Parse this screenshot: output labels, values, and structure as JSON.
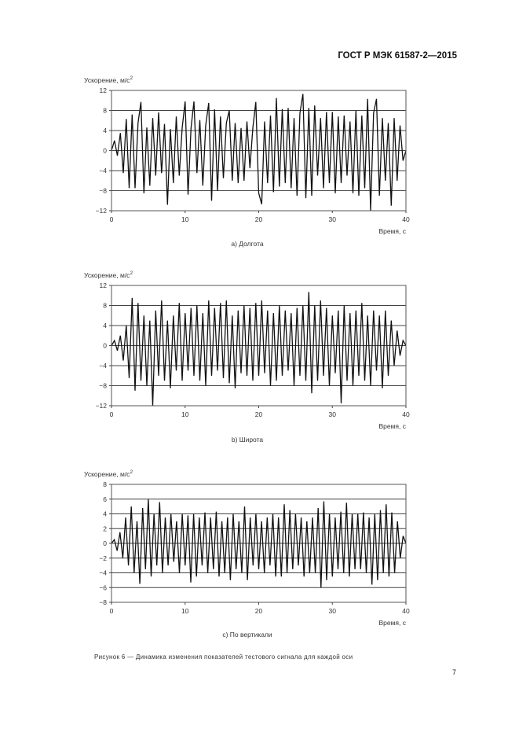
{
  "header": {
    "doc_id": "ГОСТ Р МЭК 61587-2—2015"
  },
  "figure_caption": "Рисунок  6 — Динамика изменения показателей тестового сигнала для каждой оси",
  "page_number": "7",
  "chart_data": [
    {
      "type": "line",
      "caption": "a) Долгота",
      "ylabel": "Ускорение, м/с",
      "ylabel_sup": "2",
      "xlabel": "Время, с",
      "xlim": [
        0,
        40
      ],
      "ylim": [
        -12,
        12
      ],
      "xticks": [
        0,
        10,
        20,
        30,
        40
      ],
      "yticks": [
        12,
        8,
        4,
        0,
        -4,
        -8,
        -12
      ],
      "grid": "horizontal",
      "line_color": "#111111",
      "values": [
        0,
        2,
        -1,
        3.5,
        -4.5,
        6.3,
        -7.5,
        7.2,
        -7.5,
        5.5,
        9.7,
        -8.5,
        4.6,
        -7,
        6.5,
        -5,
        7.6,
        -4.5,
        5.3,
        -10.8,
        4.3,
        -6.5,
        6.8,
        -5,
        4.5,
        9.8,
        -8.8,
        4.5,
        9.8,
        -4.5,
        6.1,
        -7,
        5,
        9.5,
        -10,
        8.2,
        -8,
        6.8,
        -5.5,
        5.5,
        8,
        -6,
        5.5,
        -6.5,
        4.5,
        -6,
        5.8,
        -3.5,
        4.5,
        9.7,
        -8.5,
        -10.7,
        5.8,
        -6.5,
        7,
        -8.3,
        10.5,
        -7.2,
        8.3,
        -6.5,
        8.5,
        -7.5,
        6.5,
        -9,
        7.5,
        11.3,
        -9.5,
        8.5,
        -9,
        9,
        -5,
        6.5,
        -7.5,
        7.7,
        -6.5,
        7.7,
        -8.5,
        6.8,
        -6.5,
        7,
        -5,
        5.8,
        -8.5,
        8,
        -9,
        7,
        -7.5,
        10.3,
        -12,
        7.5,
        10.3,
        -9,
        6.5,
        -6,
        5.5,
        -11,
        6.5,
        -6,
        5,
        -2,
        0
      ]
    },
    {
      "type": "line",
      "caption": "b) Широта",
      "ylabel": "Ускорение, м/с",
      "ylabel_sup": "2",
      "xlabel": "Время, с",
      "xlim": [
        0,
        40
      ],
      "ylim": [
        -12,
        12
      ],
      "xticks": [
        0,
        10,
        20,
        30,
        40
      ],
      "yticks": [
        12,
        8,
        4,
        0,
        -4,
        -8,
        -12
      ],
      "grid": "horizontal",
      "line_color": "#111111",
      "values": [
        0,
        1,
        -1,
        2,
        -3,
        4,
        -6.5,
        9.5,
        -9,
        8.5,
        -7,
        6,
        -8,
        5,
        -12,
        7,
        -6,
        9,
        -7,
        5,
        -8.5,
        6,
        -5,
        8.5,
        -7,
        6.5,
        -5,
        7.5,
        -6,
        8,
        -7,
        6.5,
        -8,
        9,
        -6,
        7.5,
        -5,
        8.5,
        -6.5,
        9,
        -7.5,
        6,
        -8.5,
        7,
        -5.5,
        8,
        -6,
        7.5,
        -7,
        8.5,
        -6,
        9,
        -5.5,
        7,
        -8,
        6.5,
        -7,
        8,
        -6,
        7,
        -5,
        6.5,
        -8,
        7.5,
        -6,
        8,
        -7,
        10.7,
        -9.5,
        8,
        -7,
        9,
        -6,
        7.5,
        -8,
        6,
        -5.5,
        7,
        -11.5,
        8,
        -7,
        6.5,
        -8,
        7,
        -6,
        8.5,
        -7,
        6,
        -8,
        7,
        -5,
        6,
        -8.5,
        7,
        -6,
        5,
        -4,
        3,
        -2,
        1,
        0
      ]
    },
    {
      "type": "line",
      "caption": "c) По вертикали",
      "ylabel": "Ускорение, м/с",
      "ylabel_sup": "2",
      "xlabel": "Время, с",
      "xlim": [
        0,
        40
      ],
      "ylim": [
        -8,
        8
      ],
      "xticks": [
        0,
        10,
        20,
        30,
        40
      ],
      "yticks": [
        8,
        6,
        4,
        2,
        0,
        -2,
        -4,
        -6,
        -8
      ],
      "grid": "horizontal",
      "line_color": "#111111",
      "values": [
        0,
        0.5,
        -1,
        1.5,
        -2,
        3.5,
        -3,
        5,
        -4,
        3,
        -5.5,
        4.8,
        -3.5,
        6,
        -4.5,
        4,
        -3,
        5.6,
        -4,
        3.5,
        -3,
        4,
        -2.5,
        3,
        -4,
        4,
        -3,
        3.8,
        -5.3,
        4,
        -4.5,
        3.5,
        -3,
        4.2,
        -4,
        3.5,
        -3.5,
        4.3,
        -4.5,
        3,
        -4,
        3.5,
        -5,
        4,
        -3.5,
        3,
        -4,
        5,
        -5,
        3.5,
        -3,
        4,
        -3.5,
        3,
        -4,
        3.5,
        -3,
        4,
        -4.5,
        3.5,
        -4.5,
        5.3,
        -4,
        4.5,
        -3.5,
        4,
        -3,
        3.5,
        -4.5,
        3,
        -4,
        3.5,
        -4,
        4.8,
        -6,
        5.7,
        -5,
        4,
        -4.5,
        3.5,
        -3.5,
        4.3,
        -4,
        5.5,
        -4.5,
        4,
        -3.5,
        4,
        -3.5,
        4.2,
        -4,
        3.5,
        -5.6,
        4,
        -5,
        4.5,
        -4,
        5.3,
        -4.5,
        4.2,
        -4,
        3,
        -2,
        1,
        0
      ]
    }
  ]
}
